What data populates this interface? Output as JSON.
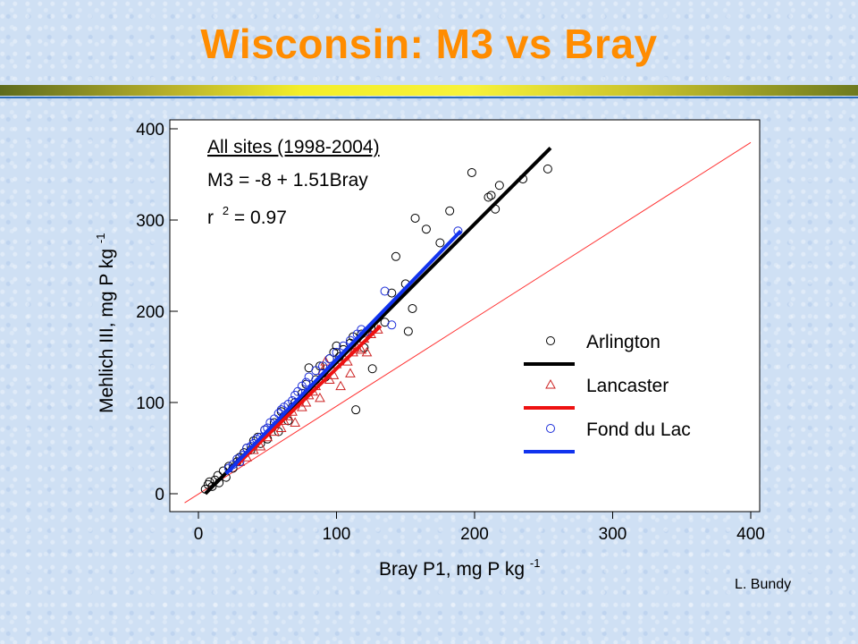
{
  "slide": {
    "title": "Wisconsin:  M3 vs Bray",
    "credit": "L. Bundy"
  },
  "chart_data": {
    "type": "scatter",
    "title": "",
    "xlabel": "Bray P1, mg P kg",
    "xlabel_sup": "-1",
    "ylabel": "Mehlich III, mg P kg",
    "ylabel_sup": "-1",
    "xlim": [
      0,
      400
    ],
    "ylim": [
      0,
      400
    ],
    "xticks": [
      0,
      100,
      200,
      300,
      400
    ],
    "yticks": [
      0,
      100,
      200,
      300,
      400
    ],
    "grid": false,
    "legend_position": "right",
    "annotation": {
      "line1": "All sites (1998-2004)",
      "line2": "M3 = -8 + 1.51Bray",
      "line3_prefix": "r",
      "line3_sup": "2",
      "line3_suffix": " = 0.97"
    },
    "reference_line": {
      "name": "",
      "x": [
        -10,
        400
      ],
      "y": [
        -10,
        385
      ],
      "color": "#ff3333"
    },
    "series": [
      {
        "name": "Arlington",
        "marker": "circle",
        "marker_color": "#000000",
        "line_color": "#000000",
        "fit_line": {
          "x": [
            5,
            255
          ],
          "y": [
            0,
            379
          ]
        },
        "points": [
          [
            5,
            5
          ],
          [
            7,
            10
          ],
          [
            8,
            13
          ],
          [
            10,
            8
          ],
          [
            12,
            15
          ],
          [
            14,
            20
          ],
          [
            15,
            12
          ],
          [
            18,
            25
          ],
          [
            20,
            18
          ],
          [
            22,
            30
          ],
          [
            25,
            28
          ],
          [
            28,
            35
          ],
          [
            30,
            40
          ],
          [
            33,
            45
          ],
          [
            35,
            50
          ],
          [
            38,
            48
          ],
          [
            40,
            58
          ],
          [
            43,
            62
          ],
          [
            45,
            55
          ],
          [
            48,
            70
          ],
          [
            50,
            60
          ],
          [
            55,
            78
          ],
          [
            58,
            68
          ],
          [
            60,
            90
          ],
          [
            62,
            85
          ],
          [
            65,
            80
          ],
          [
            68,
            95
          ],
          [
            70,
            100
          ],
          [
            75,
            110
          ],
          [
            78,
            120
          ],
          [
            80,
            138
          ],
          [
            82,
            115
          ],
          [
            85,
            125
          ],
          [
            88,
            140
          ],
          [
            90,
            132
          ],
          [
            92,
            128
          ],
          [
            95,
            148
          ],
          [
            98,
            155
          ],
          [
            100,
            162
          ],
          [
            102,
            150
          ],
          [
            105,
            158
          ],
          [
            110,
            165
          ],
          [
            112,
            172
          ],
          [
            114,
            92
          ],
          [
            118,
            175
          ],
          [
            120,
            160
          ],
          [
            125,
            182
          ],
          [
            126,
            137
          ],
          [
            135,
            188
          ],
          [
            140,
            220
          ],
          [
            143,
            260
          ],
          [
            150,
            230
          ],
          [
            152,
            178
          ],
          [
            155,
            203
          ],
          [
            157,
            302
          ],
          [
            165,
            290
          ],
          [
            175,
            275
          ],
          [
            182,
            310
          ],
          [
            198,
            352
          ],
          [
            210,
            325
          ],
          [
            212,
            327
          ],
          [
            215,
            312
          ],
          [
            218,
            338
          ],
          [
            235,
            345
          ],
          [
            253,
            356
          ]
        ]
      },
      {
        "name": "Lancaster",
        "marker": "triangle",
        "marker_color": "#cc2222",
        "line_color": "#ee1111",
        "fit_line": {
          "x": [
            28,
            132
          ],
          "y": [
            32,
            184
          ]
        },
        "points": [
          [
            30,
            35
          ],
          [
            35,
            40
          ],
          [
            40,
            48
          ],
          [
            45,
            52
          ],
          [
            50,
            62
          ],
          [
            55,
            68
          ],
          [
            60,
            72
          ],
          [
            62,
            80
          ],
          [
            65,
            85
          ],
          [
            68,
            90
          ],
          [
            70,
            78
          ],
          [
            75,
            95
          ],
          [
            78,
            100
          ],
          [
            80,
            108
          ],
          [
            83,
            112
          ],
          [
            85,
            118
          ],
          [
            88,
            105
          ],
          [
            90,
            135
          ],
          [
            92,
            145
          ],
          [
            95,
            125
          ],
          [
            98,
            130
          ],
          [
            100,
            142
          ],
          [
            103,
            118
          ],
          [
            105,
            150
          ],
          [
            108,
            145
          ],
          [
            110,
            132
          ],
          [
            112,
            155
          ],
          [
            115,
            160
          ],
          [
            118,
            158
          ],
          [
            120,
            170
          ],
          [
            122,
            155
          ],
          [
            125,
            175
          ],
          [
            130,
            180
          ]
        ]
      },
      {
        "name": "Fond du Lac",
        "marker": "circle",
        "marker_color": "#1a2cd9",
        "line_color": "#1133ee",
        "fit_line": {
          "x": [
            20,
            190
          ],
          "y": [
            22,
            288
          ]
        },
        "points": [
          [
            22,
            28
          ],
          [
            25,
            32
          ],
          [
            28,
            38
          ],
          [
            30,
            35
          ],
          [
            32,
            42
          ],
          [
            35,
            50
          ],
          [
            38,
            52
          ],
          [
            40,
            55
          ],
          [
            42,
            60
          ],
          [
            45,
            62
          ],
          [
            48,
            70
          ],
          [
            50,
            72
          ],
          [
            52,
            78
          ],
          [
            55,
            82
          ],
          [
            58,
            88
          ],
          [
            60,
            92
          ],
          [
            62,
            95
          ],
          [
            65,
            98
          ],
          [
            68,
            102
          ],
          [
            70,
            108
          ],
          [
            72,
            112
          ],
          [
            75,
            118
          ],
          [
            78,
            122
          ],
          [
            80,
            128
          ],
          [
            85,
            135
          ],
          [
            90,
            140
          ],
          [
            95,
            148
          ],
          [
            100,
            155
          ],
          [
            105,
            162
          ],
          [
            110,
            168
          ],
          [
            115,
            175
          ],
          [
            118,
            180
          ],
          [
            122,
            178
          ],
          [
            135,
            222
          ],
          [
            140,
            185
          ],
          [
            188,
            288
          ]
        ]
      }
    ]
  }
}
